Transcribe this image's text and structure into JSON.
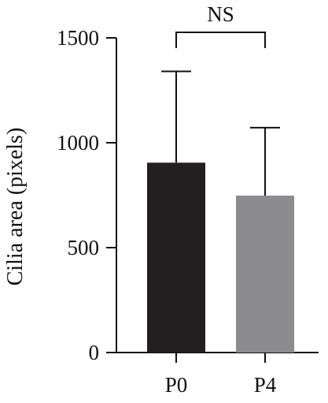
{
  "chart_data": {
    "type": "bar",
    "title": "",
    "xlabel": "",
    "ylabel": "Cilia area (pixels)",
    "categories": [
      "P0",
      "P4"
    ],
    "values": [
      905,
      748
    ],
    "errors_upper": [
      1340,
      1072
    ],
    "ylim": [
      0,
      1500
    ],
    "yticks": [
      0,
      500,
      1000,
      1500
    ],
    "ytick_labels": [
      "0",
      "500",
      "1000",
      "1500"
    ],
    "bar_colors": [
      "#231f20",
      "#8c8c8e"
    ],
    "grid": false,
    "legend": "none",
    "significance": {
      "pair": [
        "P0",
        "P4"
      ],
      "label": "NS"
    }
  }
}
